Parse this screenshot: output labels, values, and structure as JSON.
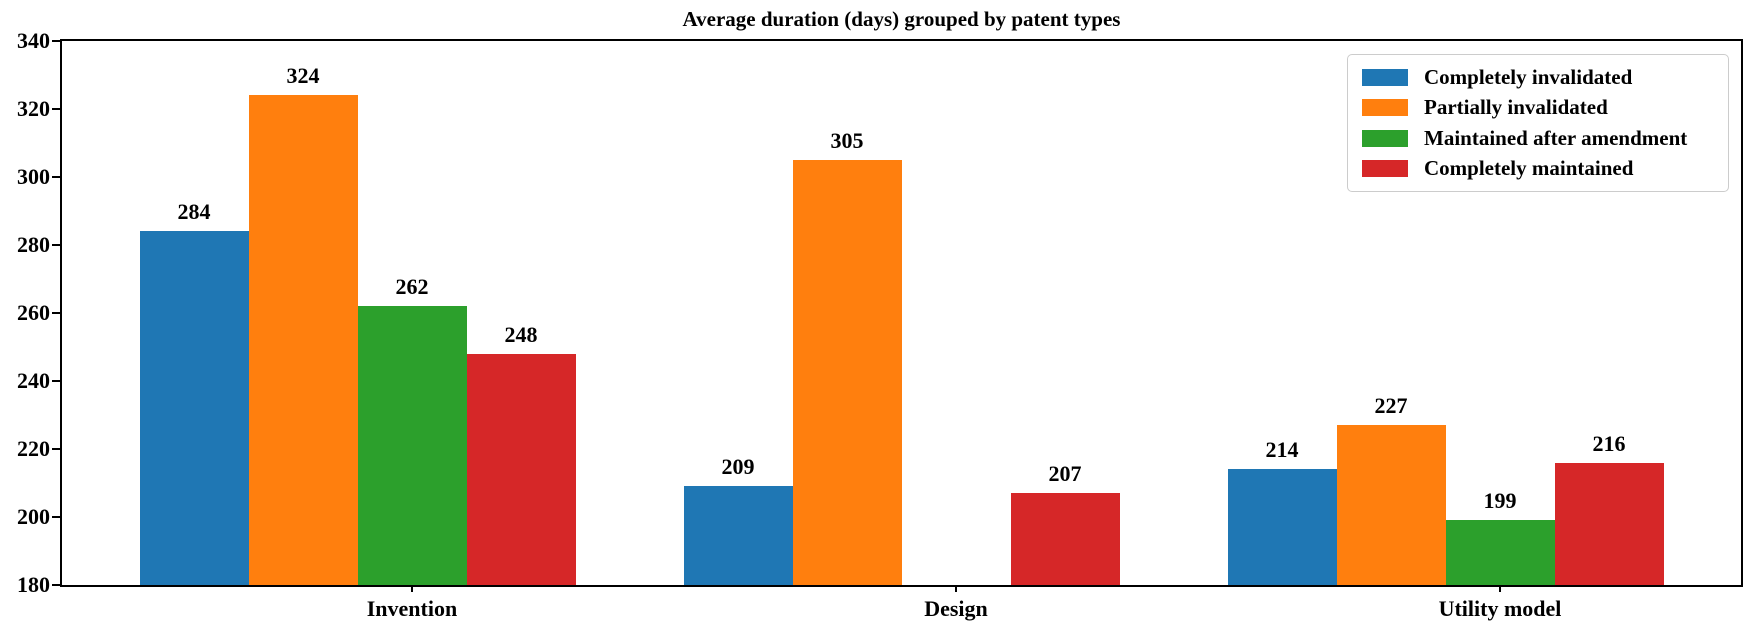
{
  "chart_data": {
    "type": "bar",
    "title": "Average duration (days) grouped by patent types",
    "categories": [
      "Invention",
      "Design",
      "Utility model"
    ],
    "series": [
      {
        "name": "Completely invalidated",
        "color": "#1f77b4",
        "values": [
          284,
          209,
          214
        ]
      },
      {
        "name": "Partially invalidated",
        "color": "#ff7f0e",
        "values": [
          324,
          305,
          227
        ]
      },
      {
        "name": "Maintained after amendment",
        "color": "#2ca02c",
        "values": [
          262,
          null,
          199
        ]
      },
      {
        "name": "Completely maintained",
        "color": "#d62728",
        "values": [
          248,
          207,
          216
        ]
      }
    ],
    "ylim": [
      180,
      340
    ],
    "yticks": [
      180,
      200,
      220,
      240,
      260,
      280,
      300,
      320,
      340
    ],
    "bar_value_labels": true,
    "legend_position": "upper right",
    "grid": false,
    "background": "#ffffff",
    "axis_color": "#000000"
  }
}
